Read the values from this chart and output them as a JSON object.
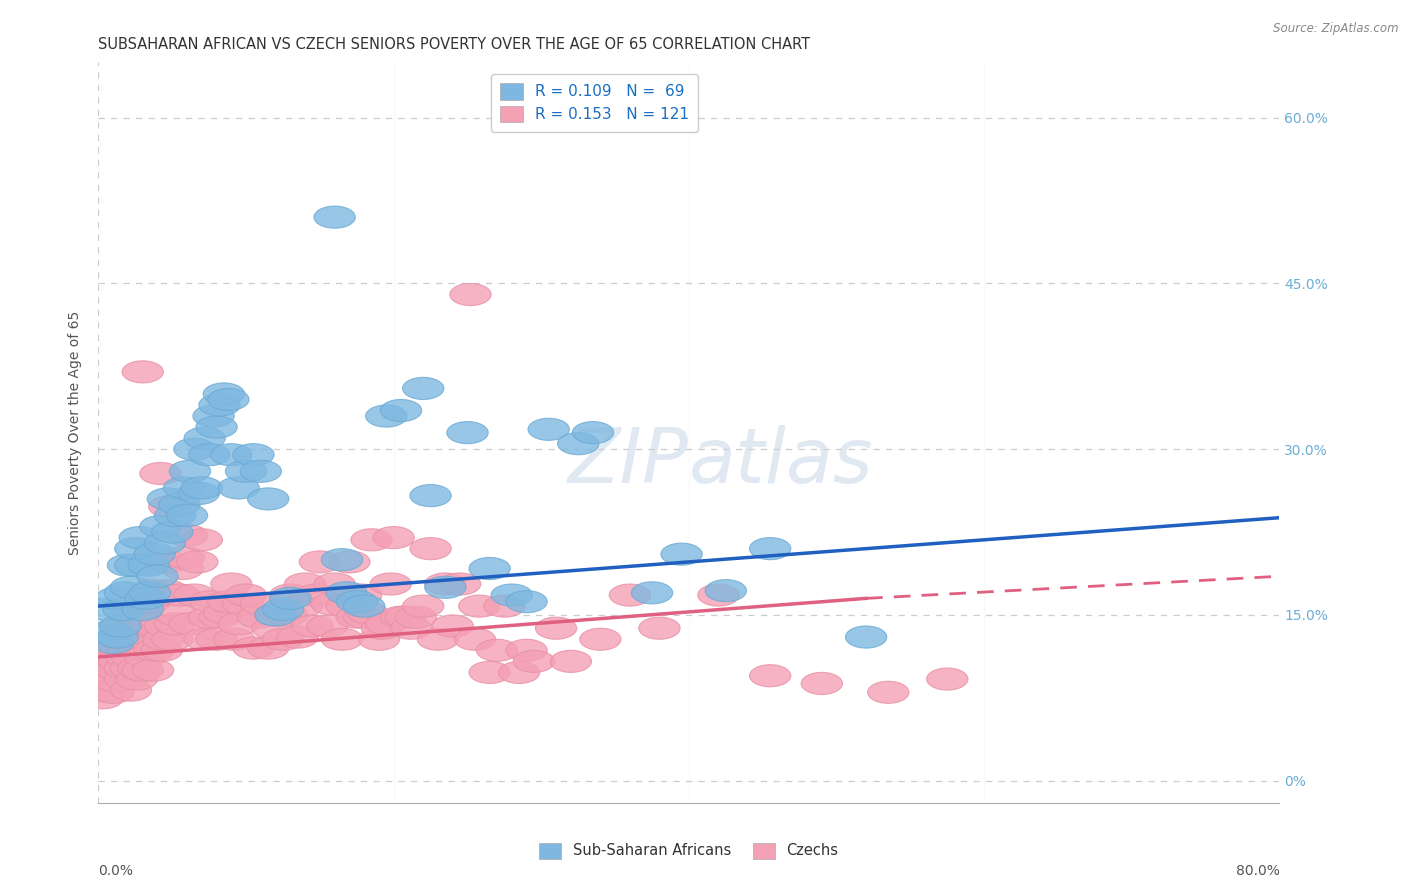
{
  "title": "SUBSAHARAN AFRICAN VS CZECH SENIORS POVERTY OVER THE AGE OF 65 CORRELATION CHART",
  "source": "Source: ZipAtlas.com",
  "ylabel": "Seniors Poverty Over the Age of 65",
  "ytick_vals": [
    0.0,
    0.15,
    0.3,
    0.45,
    0.6
  ],
  "ytick_labels": [
    "0%",
    "15.0%",
    "30.0%",
    "45.0%",
    "60.0%"
  ],
  "xlim": [
    0.0,
    0.8
  ],
  "ylim": [
    -0.02,
    0.65
  ],
  "watermark": "ZIPatlas",
  "blue_color": "#7eb8e0",
  "pink_color": "#f4a0b5",
  "blue_edge": "#6aaad4",
  "pink_edge": "#e890a5",
  "blue_scatter": [
    [
      0.005,
      0.155
    ],
    [
      0.008,
      0.135
    ],
    [
      0.01,
      0.125
    ],
    [
      0.012,
      0.165
    ],
    [
      0.013,
      0.13
    ],
    [
      0.015,
      0.14
    ],
    [
      0.017,
      0.155
    ],
    [
      0.018,
      0.17
    ],
    [
      0.02,
      0.195
    ],
    [
      0.022,
      0.175
    ],
    [
      0.025,
      0.195
    ],
    [
      0.025,
      0.21
    ],
    [
      0.028,
      0.22
    ],
    [
      0.03,
      0.155
    ],
    [
      0.032,
      0.165
    ],
    [
      0.034,
      0.195
    ],
    [
      0.035,
      0.17
    ],
    [
      0.038,
      0.205
    ],
    [
      0.04,
      0.185
    ],
    [
      0.042,
      0.23
    ],
    [
      0.045,
      0.215
    ],
    [
      0.047,
      0.255
    ],
    [
      0.05,
      0.225
    ],
    [
      0.052,
      0.24
    ],
    [
      0.055,
      0.25
    ],
    [
      0.058,
      0.265
    ],
    [
      0.06,
      0.24
    ],
    [
      0.062,
      0.28
    ],
    [
      0.065,
      0.3
    ],
    [
      0.068,
      0.26
    ],
    [
      0.07,
      0.265
    ],
    [
      0.072,
      0.31
    ],
    [
      0.075,
      0.295
    ],
    [
      0.078,
      0.33
    ],
    [
      0.08,
      0.32
    ],
    [
      0.082,
      0.34
    ],
    [
      0.085,
      0.35
    ],
    [
      0.088,
      0.345
    ],
    [
      0.09,
      0.295
    ],
    [
      0.095,
      0.265
    ],
    [
      0.1,
      0.28
    ],
    [
      0.105,
      0.295
    ],
    [
      0.11,
      0.28
    ],
    [
      0.115,
      0.255
    ],
    [
      0.12,
      0.15
    ],
    [
      0.125,
      0.155
    ],
    [
      0.13,
      0.165
    ],
    [
      0.16,
      0.51
    ],
    [
      0.165,
      0.2
    ],
    [
      0.168,
      0.17
    ],
    [
      0.175,
      0.162
    ],
    [
      0.18,
      0.158
    ],
    [
      0.195,
      0.33
    ],
    [
      0.205,
      0.335
    ],
    [
      0.22,
      0.355
    ],
    [
      0.225,
      0.258
    ],
    [
      0.235,
      0.175
    ],
    [
      0.25,
      0.315
    ],
    [
      0.265,
      0.192
    ],
    [
      0.28,
      0.168
    ],
    [
      0.29,
      0.162
    ],
    [
      0.305,
      0.318
    ],
    [
      0.325,
      0.305
    ],
    [
      0.335,
      0.315
    ],
    [
      0.375,
      0.17
    ],
    [
      0.395,
      0.205
    ],
    [
      0.425,
      0.172
    ],
    [
      0.455,
      0.21
    ],
    [
      0.52,
      0.13
    ]
  ],
  "pink_scatter": [
    [
      0.003,
      0.075
    ],
    [
      0.005,
      0.082
    ],
    [
      0.006,
      0.092
    ],
    [
      0.007,
      0.1
    ],
    [
      0.008,
      0.108
    ],
    [
      0.009,
      0.115
    ],
    [
      0.01,
      0.122
    ],
    [
      0.01,
      0.08
    ],
    [
      0.012,
      0.09
    ],
    [
      0.013,
      0.1
    ],
    [
      0.014,
      0.108
    ],
    [
      0.015,
      0.118
    ],
    [
      0.015,
      0.128
    ],
    [
      0.016,
      0.132
    ],
    [
      0.017,
      0.14
    ],
    [
      0.018,
      0.092
    ],
    [
      0.018,
      0.102
    ],
    [
      0.019,
      0.112
    ],
    [
      0.02,
      0.12
    ],
    [
      0.02,
      0.138
    ],
    [
      0.021,
      0.148
    ],
    [
      0.022,
      0.082
    ],
    [
      0.022,
      0.102
    ],
    [
      0.023,
      0.112
    ],
    [
      0.024,
      0.128
    ],
    [
      0.025,
      0.142
    ],
    [
      0.025,
      0.15
    ],
    [
      0.026,
      0.092
    ],
    [
      0.027,
      0.102
    ],
    [
      0.027,
      0.12
    ],
    [
      0.028,
      0.13
    ],
    [
      0.028,
      0.142
    ],
    [
      0.029,
      0.152
    ],
    [
      0.03,
      0.37
    ],
    [
      0.03,
      0.1
    ],
    [
      0.032,
      0.112
    ],
    [
      0.033,
      0.128
    ],
    [
      0.034,
      0.142
    ],
    [
      0.035,
      0.162
    ],
    [
      0.036,
      0.172
    ],
    [
      0.037,
      0.1
    ],
    [
      0.038,
      0.118
    ],
    [
      0.04,
      0.138
    ],
    [
      0.041,
      0.168
    ],
    [
      0.042,
      0.278
    ],
    [
      0.043,
      0.118
    ],
    [
      0.044,
      0.128
    ],
    [
      0.045,
      0.14
    ],
    [
      0.046,
      0.172
    ],
    [
      0.047,
      0.198
    ],
    [
      0.048,
      0.248
    ],
    [
      0.05,
      0.128
    ],
    [
      0.052,
      0.142
    ],
    [
      0.053,
      0.15
    ],
    [
      0.055,
      0.168
    ],
    [
      0.057,
      0.192
    ],
    [
      0.058,
      0.202
    ],
    [
      0.06,
      0.222
    ],
    [
      0.062,
      0.142
    ],
    [
      0.065,
      0.168
    ],
    [
      0.067,
      0.198
    ],
    [
      0.07,
      0.218
    ],
    [
      0.072,
      0.128
    ],
    [
      0.075,
      0.148
    ],
    [
      0.076,
      0.162
    ],
    [
      0.08,
      0.128
    ],
    [
      0.082,
      0.148
    ],
    [
      0.085,
      0.152
    ],
    [
      0.088,
      0.162
    ],
    [
      0.09,
      0.178
    ],
    [
      0.092,
      0.128
    ],
    [
      0.095,
      0.142
    ],
    [
      0.098,
      0.16
    ],
    [
      0.1,
      0.168
    ],
    [
      0.105,
      0.12
    ],
    [
      0.108,
      0.148
    ],
    [
      0.11,
      0.16
    ],
    [
      0.115,
      0.12
    ],
    [
      0.118,
      0.138
    ],
    [
      0.12,
      0.15
    ],
    [
      0.125,
      0.128
    ],
    [
      0.128,
      0.15
    ],
    [
      0.13,
      0.168
    ],
    [
      0.135,
      0.13
    ],
    [
      0.138,
      0.158
    ],
    [
      0.14,
      0.178
    ],
    [
      0.145,
      0.14
    ],
    [
      0.148,
      0.168
    ],
    [
      0.15,
      0.198
    ],
    [
      0.155,
      0.14
    ],
    [
      0.158,
      0.16
    ],
    [
      0.16,
      0.178
    ],
    [
      0.165,
      0.128
    ],
    [
      0.168,
      0.158
    ],
    [
      0.17,
      0.198
    ],
    [
      0.175,
      0.148
    ],
    [
      0.178,
      0.168
    ],
    [
      0.18,
      0.148
    ],
    [
      0.182,
      0.152
    ],
    [
      0.185,
      0.218
    ],
    [
      0.19,
      0.128
    ],
    [
      0.192,
      0.138
    ],
    [
      0.195,
      0.142
    ],
    [
      0.198,
      0.178
    ],
    [
      0.2,
      0.22
    ],
    [
      0.205,
      0.148
    ],
    [
      0.208,
      0.148
    ],
    [
      0.212,
      0.138
    ],
    [
      0.215,
      0.148
    ],
    [
      0.22,
      0.158
    ],
    [
      0.225,
      0.21
    ],
    [
      0.23,
      0.128
    ],
    [
      0.235,
      0.178
    ],
    [
      0.24,
      0.14
    ],
    [
      0.245,
      0.178
    ],
    [
      0.252,
      0.44
    ],
    [
      0.255,
      0.128
    ],
    [
      0.258,
      0.158
    ],
    [
      0.265,
      0.098
    ],
    [
      0.27,
      0.118
    ],
    [
      0.275,
      0.158
    ],
    [
      0.285,
      0.098
    ],
    [
      0.29,
      0.118
    ],
    [
      0.295,
      0.108
    ],
    [
      0.31,
      0.138
    ],
    [
      0.32,
      0.108
    ],
    [
      0.34,
      0.128
    ],
    [
      0.36,
      0.168
    ],
    [
      0.38,
      0.138
    ],
    [
      0.42,
      0.168
    ],
    [
      0.455,
      0.095
    ],
    [
      0.49,
      0.088
    ],
    [
      0.535,
      0.08
    ],
    [
      0.575,
      0.092
    ]
  ],
  "blue_line_solid": [
    [
      0.0,
      0.158
    ],
    [
      0.8,
      0.238
    ]
  ],
  "pink_line_solid": [
    [
      0.0,
      0.112
    ],
    [
      0.52,
      0.165
    ]
  ],
  "pink_line_dashed": [
    [
      0.52,
      0.165
    ],
    [
      0.8,
      0.185
    ]
  ],
  "background_color": "#ffffff",
  "grid_color": "#cccccc",
  "title_color": "#333333",
  "axis_label_color": "#555555",
  "right_tick_color": "#6baed6",
  "legend_text_color": "#1a6fc4",
  "legend_N_color": "#cc0000"
}
